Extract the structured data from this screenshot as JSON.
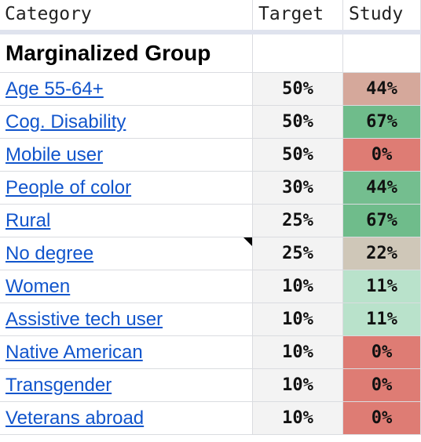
{
  "header": {
    "category": "Category",
    "target": "Target",
    "study": "Study"
  },
  "section": {
    "title": "Marginalized Group"
  },
  "rows": [
    {
      "category": "Age 55-64+",
      "target": "50%",
      "study": "44%",
      "study_color": "#d5a89b"
    },
    {
      "category": "Cog. Disability",
      "target": "50%",
      "study": "67%",
      "study_color": "#6fbc8b"
    },
    {
      "category": "Mobile user",
      "target": "50%",
      "study": "0%",
      "study_color": "#de7c74"
    },
    {
      "category": "People of color",
      "target": "30%",
      "study": "44%",
      "study_color": "#74be8f"
    },
    {
      "category": "Rural",
      "target": "25%",
      "study": "67%",
      "study_color": "#6fbc8b"
    },
    {
      "category": "No degree",
      "target": "25%",
      "study": "22%",
      "study_color": "#cfc7b8",
      "has_comment": true
    },
    {
      "category": "Women",
      "target": "10%",
      "study": "11%",
      "study_color": "#b9e2cb"
    },
    {
      "category": "Assistive tech user",
      "target": "10%",
      "study": "11%",
      "study_color": "#b9e2cb"
    },
    {
      "category": "Native American",
      "target": "10%",
      "study": "0%",
      "study_color": "#de7c74"
    },
    {
      "category": "Transgender",
      "target": "10%",
      "study": "0%",
      "study_color": "#de7c74"
    },
    {
      "category": "Veterans abroad",
      "target": "10%",
      "study": "0%",
      "study_color": "#de7c74"
    }
  ]
}
